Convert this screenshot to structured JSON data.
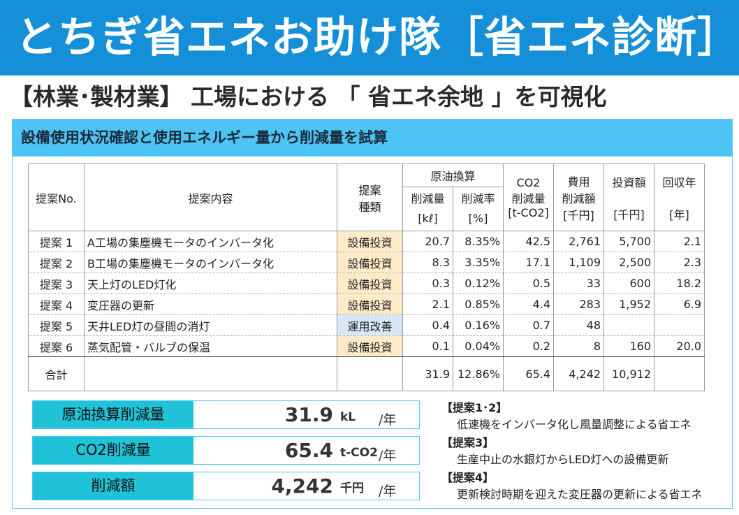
{
  "banner": {
    "title": "とちぎ省エネお助け隊［省エネ診断］"
  },
  "subtitle": "【林業･製材業】 工場における 「 省エネ余地 」を可視化",
  "panel": {
    "heading": "設備使用状況確認と使用エネルギー量から削減量を試算"
  },
  "table": {
    "headers": {
      "no": "提案No.",
      "content": "提案内容",
      "type_line1": "提案",
      "type_line2": "種類",
      "oil_group": "原油換算",
      "oil_reduction_line1": "削減量",
      "oil_reduction_line2": "[kℓ]",
      "oil_rate_line1": "削減率",
      "oil_rate_line2": "[%]",
      "co2_line1": "CO2",
      "co2_line2": "削減量",
      "co2_line3": "[t-CO2]",
      "cost_line1": "費用",
      "cost_line2": "削減額",
      "cost_line3": "[千円]",
      "invest_line1": "投資額",
      "invest_line2": "[千円]",
      "payback_line1": "回収年",
      "payback_line2": "[年]"
    },
    "rows": [
      {
        "no": "提案 1",
        "content": "A工場の集塵機モータのインバータ化",
        "type": "設備投資",
        "oil": "20.7",
        "rate": "8.35%",
        "co2": "42.5",
        "cost": "2,761",
        "invest": "5,700",
        "payback": "2.1"
      },
      {
        "no": "提案 2",
        "content": "B工場の集塵機モータのインバータ化",
        "type": "設備投資",
        "oil": "8.3",
        "rate": "3.35%",
        "co2": "17.1",
        "cost": "1,109",
        "invest": "2,500",
        "payback": "2.3"
      },
      {
        "no": "提案 3",
        "content": "天上灯のLED灯化",
        "type": "設備投資",
        "oil": "0.3",
        "rate": "0.12%",
        "co2": "0.5",
        "cost": "33",
        "invest": "600",
        "payback": "18.2"
      },
      {
        "no": "提案 4",
        "content": "変圧器の更新",
        "type": "設備投資",
        "oil": "2.1",
        "rate": "0.85%",
        "co2": "4.4",
        "cost": "283",
        "invest": "1,952",
        "payback": "6.9"
      },
      {
        "no": "提案 5",
        "content": "天井LED灯の昼間の消灯",
        "type": "運用改善",
        "oil": "0.4",
        "rate": "0.16%",
        "co2": "0.7",
        "cost": "48",
        "invest": "",
        "payback": ""
      },
      {
        "no": "提案 6",
        "content": "蒸気配管・バルブの保温",
        "type": "設備投資",
        "oil": "0.1",
        "rate": "0.04%",
        "co2": "0.2",
        "cost": "8",
        "invest": "160",
        "payback": "20.0"
      }
    ],
    "total": {
      "label": "合計",
      "oil": "31.9",
      "rate": "12.86%",
      "co2": "65.4",
      "cost": "4,242",
      "invest": "10,912"
    }
  },
  "summary": [
    {
      "label": "原油換算削減量",
      "value": "31.9",
      "unit": "kL",
      "per": "/年"
    },
    {
      "label": "CO2削減量",
      "value": "65.4",
      "unit": "t-CO2",
      "per": "/年"
    },
    {
      "label": "削減額",
      "value": "4,242",
      "unit": "千円",
      "per": "/年"
    }
  ],
  "notes": [
    {
      "heading": "【提案1･2】",
      "text": "低速機をインバータ化し風量調整による省エネ"
    },
    {
      "heading": "【提案3】",
      "text": "生産中止の水銀灯からLED灯への設備更新"
    },
    {
      "heading": "【提案4】",
      "text": "更新検討時期を迎えた変圧器の更新による省エネ"
    }
  ]
}
